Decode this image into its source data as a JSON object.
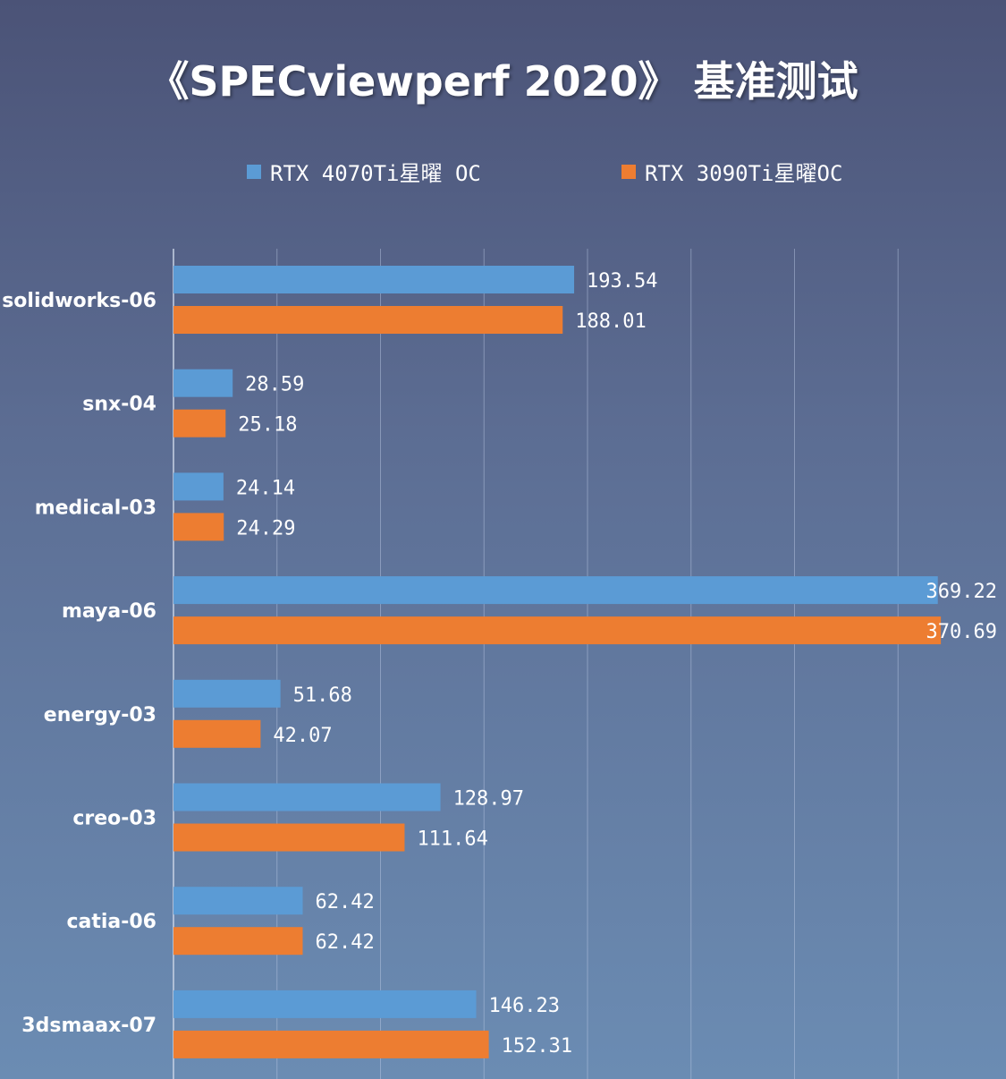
{
  "chart_data": {
    "type": "bar",
    "orientation": "horizontal",
    "title": "《SPECviewperf 2020》 基准测试",
    "categories": [
      "solidworks-06",
      "snx-04",
      "medical-03",
      "maya-06",
      "energy-03",
      "creo-03",
      "catia-06",
      "3dsmaax-07"
    ],
    "series": [
      {
        "name": "RTX 4070Ti星曜 OC",
        "color": "#5b9bd5",
        "values": [
          193.54,
          28.59,
          24.14,
          369.22,
          51.68,
          128.97,
          62.42,
          146.23
        ],
        "labels": [
          "193.54",
          "28.59",
          "24.14",
          "369.22",
          "51.68",
          "128.97",
          "62.42",
          "146.23"
        ]
      },
      {
        "name": "RTX 3090Ti星曜OC",
        "color": "#ed7d31",
        "values": [
          188.01,
          25.18,
          24.29,
          370.69,
          42.07,
          111.64,
          62.42,
          152.31
        ],
        "labels": [
          "188.01",
          "25.18",
          "24.29",
          "370.69",
          "42.07",
          "111.64",
          "62.42",
          "152.31"
        ]
      }
    ],
    "xlim": [
      0,
      400
    ],
    "grid_step": 50,
    "grid": true,
    "legend_position": "top",
    "xlabel": "",
    "ylabel": ""
  }
}
